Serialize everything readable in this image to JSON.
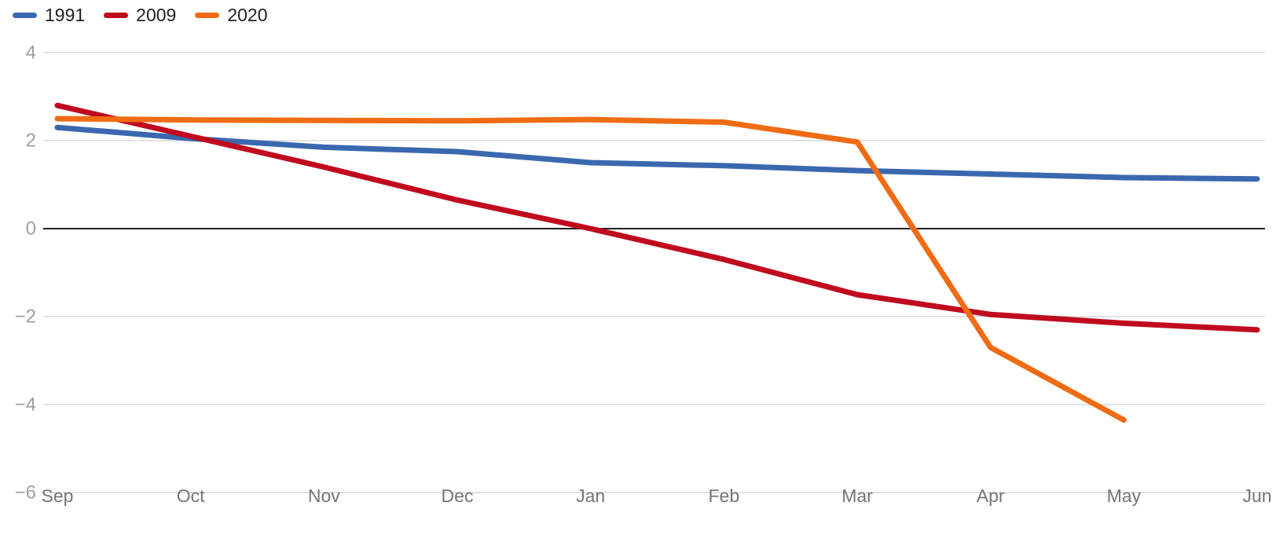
{
  "chart_data": {
    "type": "line",
    "title": "",
    "categories": [
      "Sep",
      "Oct",
      "Nov",
      "Dec",
      "Jan",
      "Feb",
      "Mar",
      "Apr",
      "May",
      "Jun"
    ],
    "series": [
      {
        "name": "1991",
        "color": "#3a68ae",
        "values": [
          2.3,
          2.05,
          1.85,
          1.75,
          1.5,
          1.43,
          1.32,
          1.24,
          1.16,
          1.13
        ]
      },
      {
        "name": "2009",
        "color": "#c00a1e",
        "values": [
          2.8,
          2.1,
          1.4,
          0.65,
          0,
          -0.7,
          -1.5,
          -1.95,
          -2.15,
          -2.3
        ]
      },
      {
        "name": "2020",
        "color": "#ef6c14",
        "values": [
          2.5,
          2.47,
          2.46,
          2.45,
          2.48,
          2.42,
          1.97,
          -2.7,
          -4.35,
          null
        ]
      }
    ],
    "ylim": [
      -6,
      4
    ],
    "yticks": [
      4,
      2,
      0,
      -2,
      -4,
      -6
    ],
    "zero_line": true,
    "grid": true,
    "legend_position": "top-left"
  },
  "style": {
    "background": "#ffffff",
    "grid_color": "#e2e2e2",
    "zero_line_color": "#212121",
    "y_label_color": "#9e9e9e",
    "x_label_color": "#757575",
    "legend_text_color": "#212121"
  }
}
